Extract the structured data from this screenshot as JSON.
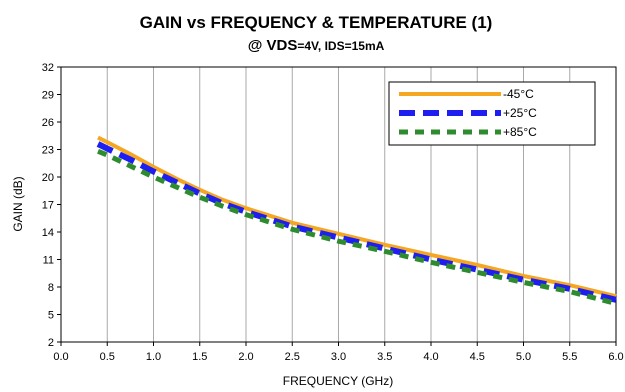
{
  "chart_data": {
    "type": "line",
    "title": "GAIN vs FREQUENCY & TEMPERATURE (1)",
    "subtitle": {
      "prefix": "@ VDS",
      "suffix": "=4V, IDS=15mA"
    },
    "xlabel": "FREQUENCY  (GHz)",
    "ylabel": "GAIN (dB)",
    "xlim": [
      0,
      6
    ],
    "ylim": [
      2,
      32
    ],
    "xticks": [
      "0.0",
      "0.5",
      "1.0",
      "1.5",
      "2.0",
      "2.5",
      "3.0",
      "3.5",
      "4.0",
      "4.5",
      "5.0",
      "5.5",
      "6.0"
    ],
    "yticks": [
      "2",
      "5",
      "8",
      "11",
      "14",
      "17",
      "20",
      "23",
      "26",
      "29",
      "32"
    ],
    "grid": "vertical",
    "legend_position": "top-right",
    "x": [
      0.4,
      0.5,
      0.75,
      1.0,
      1.25,
      1.5,
      1.75,
      2.0,
      2.5,
      3.0,
      3.5,
      4.0,
      4.5,
      5.0,
      5.5,
      6.0
    ],
    "series": [
      {
        "name": "-45°C",
        "color": "#f5a623",
        "style": "solid",
        "values": [
          24.3,
          23.8,
          22.5,
          21.1,
          19.8,
          18.6,
          17.5,
          16.6,
          15.0,
          13.8,
          12.6,
          11.5,
          10.4,
          9.2,
          8.2,
          7.0
        ]
      },
      {
        "name": "+25°C",
        "color": "#1e1ef0",
        "style": "dashed",
        "values": [
          23.6,
          23.1,
          21.9,
          20.6,
          19.4,
          18.2,
          17.1,
          16.2,
          14.6,
          13.4,
          12.2,
          11.0,
          9.9,
          8.8,
          7.8,
          6.6
        ]
      },
      {
        "name": "+85°C",
        "color": "#2e8b2e",
        "style": "dotted",
        "values": [
          22.8,
          22.4,
          21.2,
          20.0,
          18.9,
          17.8,
          16.8,
          15.9,
          14.3,
          13.0,
          11.9,
          10.7,
          9.6,
          8.5,
          7.5,
          6.2
        ]
      }
    ]
  }
}
